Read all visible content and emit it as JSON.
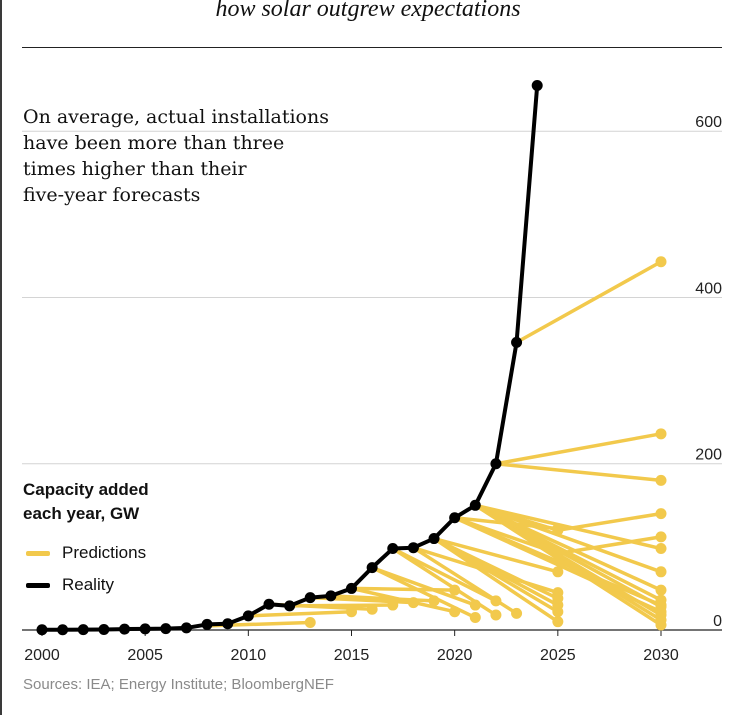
{
  "title": "how solar outgrew expectations",
  "annotation": [
    "On average, actual installations",
    "have been more than three",
    "times higher than their",
    "five-year forecasts"
  ],
  "legend": {
    "title_lines": [
      "Capacity added",
      "each year, GW"
    ],
    "items": [
      {
        "label": "Predictions",
        "color": "#f2c94c"
      },
      {
        "label": "Reality",
        "color": "#000000"
      }
    ]
  },
  "source": "Sources: IEA; Energy Institute; BloombergNEF",
  "colors": {
    "predictions": "#f2c94c",
    "reality": "#000000",
    "grid": "#d4d4d4",
    "axis": "#222222"
  },
  "chart_data": {
    "type": "line",
    "title": "how solar outgrew expectations",
    "xlabel": "",
    "ylabel": "Capacity added each year, GW",
    "xlim": [
      2000,
      2030
    ],
    "ylim": [
      0,
      650
    ],
    "x_ticks": [
      2000,
      2005,
      2010,
      2015,
      2020,
      2025,
      2030
    ],
    "y_ticks": [
      0,
      200,
      400,
      600
    ],
    "grid": true,
    "series": [
      {
        "name": "Reality",
        "x": [
          2000,
          2001,
          2002,
          2003,
          2004,
          2005,
          2006,
          2007,
          2008,
          2009,
          2010,
          2011,
          2012,
          2013,
          2014,
          2015,
          2016,
          2017,
          2018,
          2019,
          2020,
          2021,
          2022,
          2023,
          2024
        ],
        "y": [
          0.3,
          0.3,
          0.4,
          0.6,
          1.1,
          1.4,
          1.6,
          2.5,
          6.7,
          7.5,
          17,
          31,
          29,
          39,
          41,
          50,
          75,
          98,
          99,
          110,
          135,
          150,
          200,
          346,
          655
        ]
      },
      {
        "name": "Predictions",
        "lines": [
          {
            "x": [
              2008,
              2013
            ],
            "y": [
              5,
              9
            ]
          },
          {
            "x": [
              2010,
              2015
            ],
            "y": [
              17,
              22
            ]
          },
          {
            "x": [
              2011,
              2016
            ],
            "y": [
              31,
              25
            ]
          },
          {
            "x": [
              2012,
              2017
            ],
            "y": [
              29,
              30
            ]
          },
          {
            "x": [
              2013,
              2018
            ],
            "y": [
              39,
              33
            ]
          },
          {
            "x": [
              2014,
              2019
            ],
            "y": [
              41,
              35
            ]
          },
          {
            "x": [
              2015,
              2020
            ],
            "y": [
              50,
              48
            ]
          },
          {
            "x": [
              2015,
              2020
            ],
            "y": [
              50,
              22
            ]
          },
          {
            "x": [
              2016,
              2021
            ],
            "y": [
              75,
              30
            ]
          },
          {
            "x": [
              2016,
              2021
            ],
            "y": [
              75,
              15
            ]
          },
          {
            "x": [
              2017,
              2022
            ],
            "y": [
              98,
              35
            ]
          },
          {
            "x": [
              2017,
              2022
            ],
            "y": [
              98,
              18
            ]
          },
          {
            "x": [
              2018,
              2023
            ],
            "y": [
              99,
              20
            ]
          },
          {
            "x": [
              2018,
              2025
            ],
            "y": [
              99,
              45
            ]
          },
          {
            "x": [
              2019,
              2025
            ],
            "y": [
              110,
              70
            ]
          },
          {
            "x": [
              2019,
              2025
            ],
            "y": [
              110,
              38
            ]
          },
          {
            "x": [
              2019,
              2025
            ],
            "y": [
              110,
              30
            ]
          },
          {
            "x": [
              2019,
              2025
            ],
            "y": [
              110,
              22
            ]
          },
          {
            "x": [
              2019,
              2025
            ],
            "y": [
              110,
              10
            ]
          },
          {
            "x": [
              2020,
              2025
            ],
            "y": [
              135,
              122
            ]
          },
          {
            "x": [
              2020,
              2025
            ],
            "y": [
              135,
              92
            ]
          },
          {
            "x": [
              2020,
              2030
            ],
            "y": [
              135,
              30
            ]
          },
          {
            "x": [
              2020,
              2030
            ],
            "y": [
              135,
              22
            ]
          },
          {
            "x": [
              2021,
              2025,
              2030
            ],
            "y": [
              150,
              120,
              140
            ]
          },
          {
            "x": [
              2021,
              2025,
              2030
            ],
            "y": [
              150,
              92,
              112
            ]
          },
          {
            "x": [
              2021,
              2030
            ],
            "y": [
              150,
              98
            ]
          },
          {
            "x": [
              2021,
              2030
            ],
            "y": [
              150,
              70
            ]
          },
          {
            "x": [
              2021,
              2030
            ],
            "y": [
              150,
              48
            ]
          },
          {
            "x": [
              2021,
              2030
            ],
            "y": [
              150,
              36
            ]
          },
          {
            "x": [
              2021,
              2030
            ],
            "y": [
              150,
              28
            ]
          },
          {
            "x": [
              2021,
              2030
            ],
            "y": [
              150,
              18
            ]
          },
          {
            "x": [
              2021,
              2030
            ],
            "y": [
              150,
              12
            ]
          },
          {
            "x": [
              2021,
              2030
            ],
            "y": [
              150,
              6
            ]
          },
          {
            "x": [
              2022,
              2030
            ],
            "y": [
              200,
              180
            ]
          },
          {
            "x": [
              2022,
              2030
            ],
            "y": [
              200,
              236
            ]
          },
          {
            "x": [
              2023,
              2030
            ],
            "y": [
              346,
              443
            ]
          }
        ]
      }
    ]
  }
}
